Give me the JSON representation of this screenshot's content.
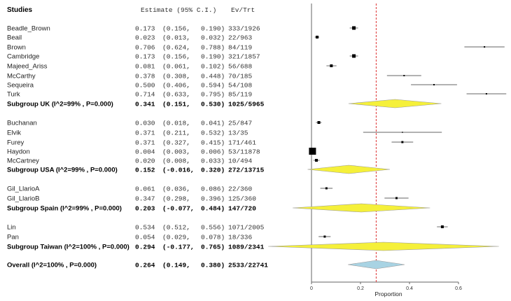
{
  "chart_data": {
    "type": "forest",
    "headers": {
      "studies": "Studies",
      "estimate": "Estimate (95% C.I.)",
      "evtrt": "Ev/Trt"
    },
    "xlabel": "Proportion",
    "xlim": [
      0,
      0.7
    ],
    "xticks": [
      "0",
      "0.2",
      "0.4",
      "0.6"
    ],
    "xtick_values": [
      0,
      0.2,
      0.4,
      0.6
    ],
    "overall_reference_line": 0.264,
    "colors": {
      "subgroup_diamond": "#f5f03a",
      "overall_diamond": "#a8d3e3",
      "reference_line": "#dd3333",
      "axis": "#666666"
    },
    "groups": [
      {
        "studies": [
          {
            "name": "Beadle_Brown",
            "est": 0.173,
            "lo": 0.156,
            "hi": 0.19,
            "est_s": "0.173",
            "lo_s": "(0.156,",
            "hi_s": "0.190)",
            "ev": "333/1926",
            "size": 5
          },
          {
            "name": "Beail",
            "est": 0.023,
            "lo": 0.013,
            "hi": 0.032,
            "est_s": "0.023",
            "lo_s": "(0.013,",
            "hi_s": "0.032)",
            "ev": "22/963",
            "size": 4
          },
          {
            "name": "Brown",
            "est": 0.706,
            "lo": 0.624,
            "hi": 0.788,
            "est_s": "0.706",
            "lo_s": "(0.624,",
            "hi_s": "0.788)",
            "ev": "84/119",
            "size": 2
          },
          {
            "name": "Cambridge",
            "est": 0.173,
            "lo": 0.156,
            "hi": 0.19,
            "est_s": "0.173",
            "lo_s": "(0.156,",
            "hi_s": "0.190)",
            "ev": "321/1857",
            "size": 5
          },
          {
            "name": "Majeed_Ariss",
            "est": 0.081,
            "lo": 0.061,
            "hi": 0.102,
            "est_s": "0.081",
            "lo_s": "(0.061,",
            "hi_s": "0.102)",
            "ev": "56/688",
            "size": 4
          },
          {
            "name": "McCarthy",
            "est": 0.378,
            "lo": 0.308,
            "hi": 0.448,
            "est_s": "0.378",
            "lo_s": "(0.308,",
            "hi_s": "0.448)",
            "ev": "70/185",
            "size": 2
          },
          {
            "name": "Sequeira",
            "est": 0.5,
            "lo": 0.406,
            "hi": 0.594,
            "est_s": "0.500",
            "lo_s": "(0.406,",
            "hi_s": "0.594)",
            "ev": "54/108",
            "size": 2
          },
          {
            "name": "Turk",
            "est": 0.714,
            "lo": 0.633,
            "hi": 0.795,
            "est_s": "0.714",
            "lo_s": "(0.633,",
            "hi_s": "0.795)",
            "ev": "85/119",
            "size": 2
          }
        ],
        "subgroup": {
          "name": "Subgroup UK (I^2=99% , P=0.000)",
          "est": 0.341,
          "lo": 0.151,
          "hi": 0.53,
          "est_s": "0.341",
          "lo_s": "(0.151,",
          "hi_s": "0.530)",
          "ev": "1025/5965"
        }
      },
      {
        "studies": [
          {
            "name": "Buchanan",
            "est": 0.03,
            "lo": 0.018,
            "hi": 0.041,
            "est_s": "0.030",
            "lo_s": "(0.018,",
            "hi_s": "0.041)",
            "ev": "25/847",
            "size": 4
          },
          {
            "name": "Elvik",
            "est": 0.371,
            "lo": 0.211,
            "hi": 0.532,
            "est_s": "0.371",
            "lo_s": "(0.211,",
            "hi_s": "0.532)",
            "ev": "13/35",
            "size": 1.5
          },
          {
            "name": "Furey",
            "est": 0.371,
            "lo": 0.327,
            "hi": 0.415,
            "est_s": "0.371",
            "lo_s": "(0.327,",
            "hi_s": "0.415)",
            "ev": "171/461",
            "size": 3
          },
          {
            "name": "Haydon",
            "est": 0.004,
            "lo": 0.003,
            "hi": 0.006,
            "est_s": "0.004",
            "lo_s": "(0.003,",
            "hi_s": "0.006)",
            "ev": "53/11878",
            "size": 10
          },
          {
            "name": "McCartney",
            "est": 0.02,
            "lo": 0.008,
            "hi": 0.033,
            "est_s": "0.020",
            "lo_s": "(0.008,",
            "hi_s": "0.033)",
            "ev": "10/494",
            "size": 4
          }
        ],
        "subgroup": {
          "name": "Subgroup USA (I^2=99% , P=0.000)",
          "est": 0.152,
          "lo": -0.016,
          "hi": 0.32,
          "est_s": "0.152",
          "lo_s": "(-0.016,",
          "hi_s": "0.320)",
          "ev": "272/13715"
        }
      },
      {
        "studies": [
          {
            "name": "Gil_LlarioA",
            "est": 0.061,
            "lo": 0.036,
            "hi": 0.086,
            "est_s": "0.061",
            "lo_s": "(0.036,",
            "hi_s": "0.086)",
            "ev": "22/360",
            "size": 3
          },
          {
            "name": "Gil_LlarioB",
            "est": 0.347,
            "lo": 0.298,
            "hi": 0.396,
            "est_s": "0.347",
            "lo_s": "(0.298,",
            "hi_s": "0.396)",
            "ev": "125/360",
            "size": 3
          }
        ],
        "subgroup": {
          "name": "Subgroup Spain (I^2=99% , P=0.000)",
          "est": 0.203,
          "lo": -0.077,
          "hi": 0.484,
          "est_s": "0.203",
          "lo_s": "(-0.077,",
          "hi_s": "0.484)",
          "ev": "147/720"
        }
      },
      {
        "studies": [
          {
            "name": "Lin",
            "est": 0.534,
            "lo": 0.512,
            "hi": 0.556,
            "est_s": "0.534",
            "lo_s": "(0.512,",
            "hi_s": "0.556)",
            "ev": "1071/2005",
            "size": 4
          },
          {
            "name": "Pan",
            "est": 0.054,
            "lo": 0.029,
            "hi": 0.078,
            "est_s": "0.054",
            "lo_s": "(0.029,",
            "hi_s": "0.078)",
            "ev": "18/336",
            "size": 3
          }
        ],
        "subgroup": {
          "name": "Subgroup Taiwan (I^2=100% , P=0.000)",
          "est": 0.294,
          "lo": -0.177,
          "hi": 0.765,
          "est_s": "0.294",
          "lo_s": "(-0.177,",
          "hi_s": "0.765)",
          "ev": "1089/2341"
        }
      }
    ],
    "overall": {
      "name": "Overall (I^2=100% , P=0.000)",
      "est": 0.264,
      "lo": 0.149,
      "hi": 0.38,
      "est_s": "0.264",
      "lo_s": "(0.149,",
      "hi_s": "0.380)",
      "ev": "2533/22741"
    }
  }
}
